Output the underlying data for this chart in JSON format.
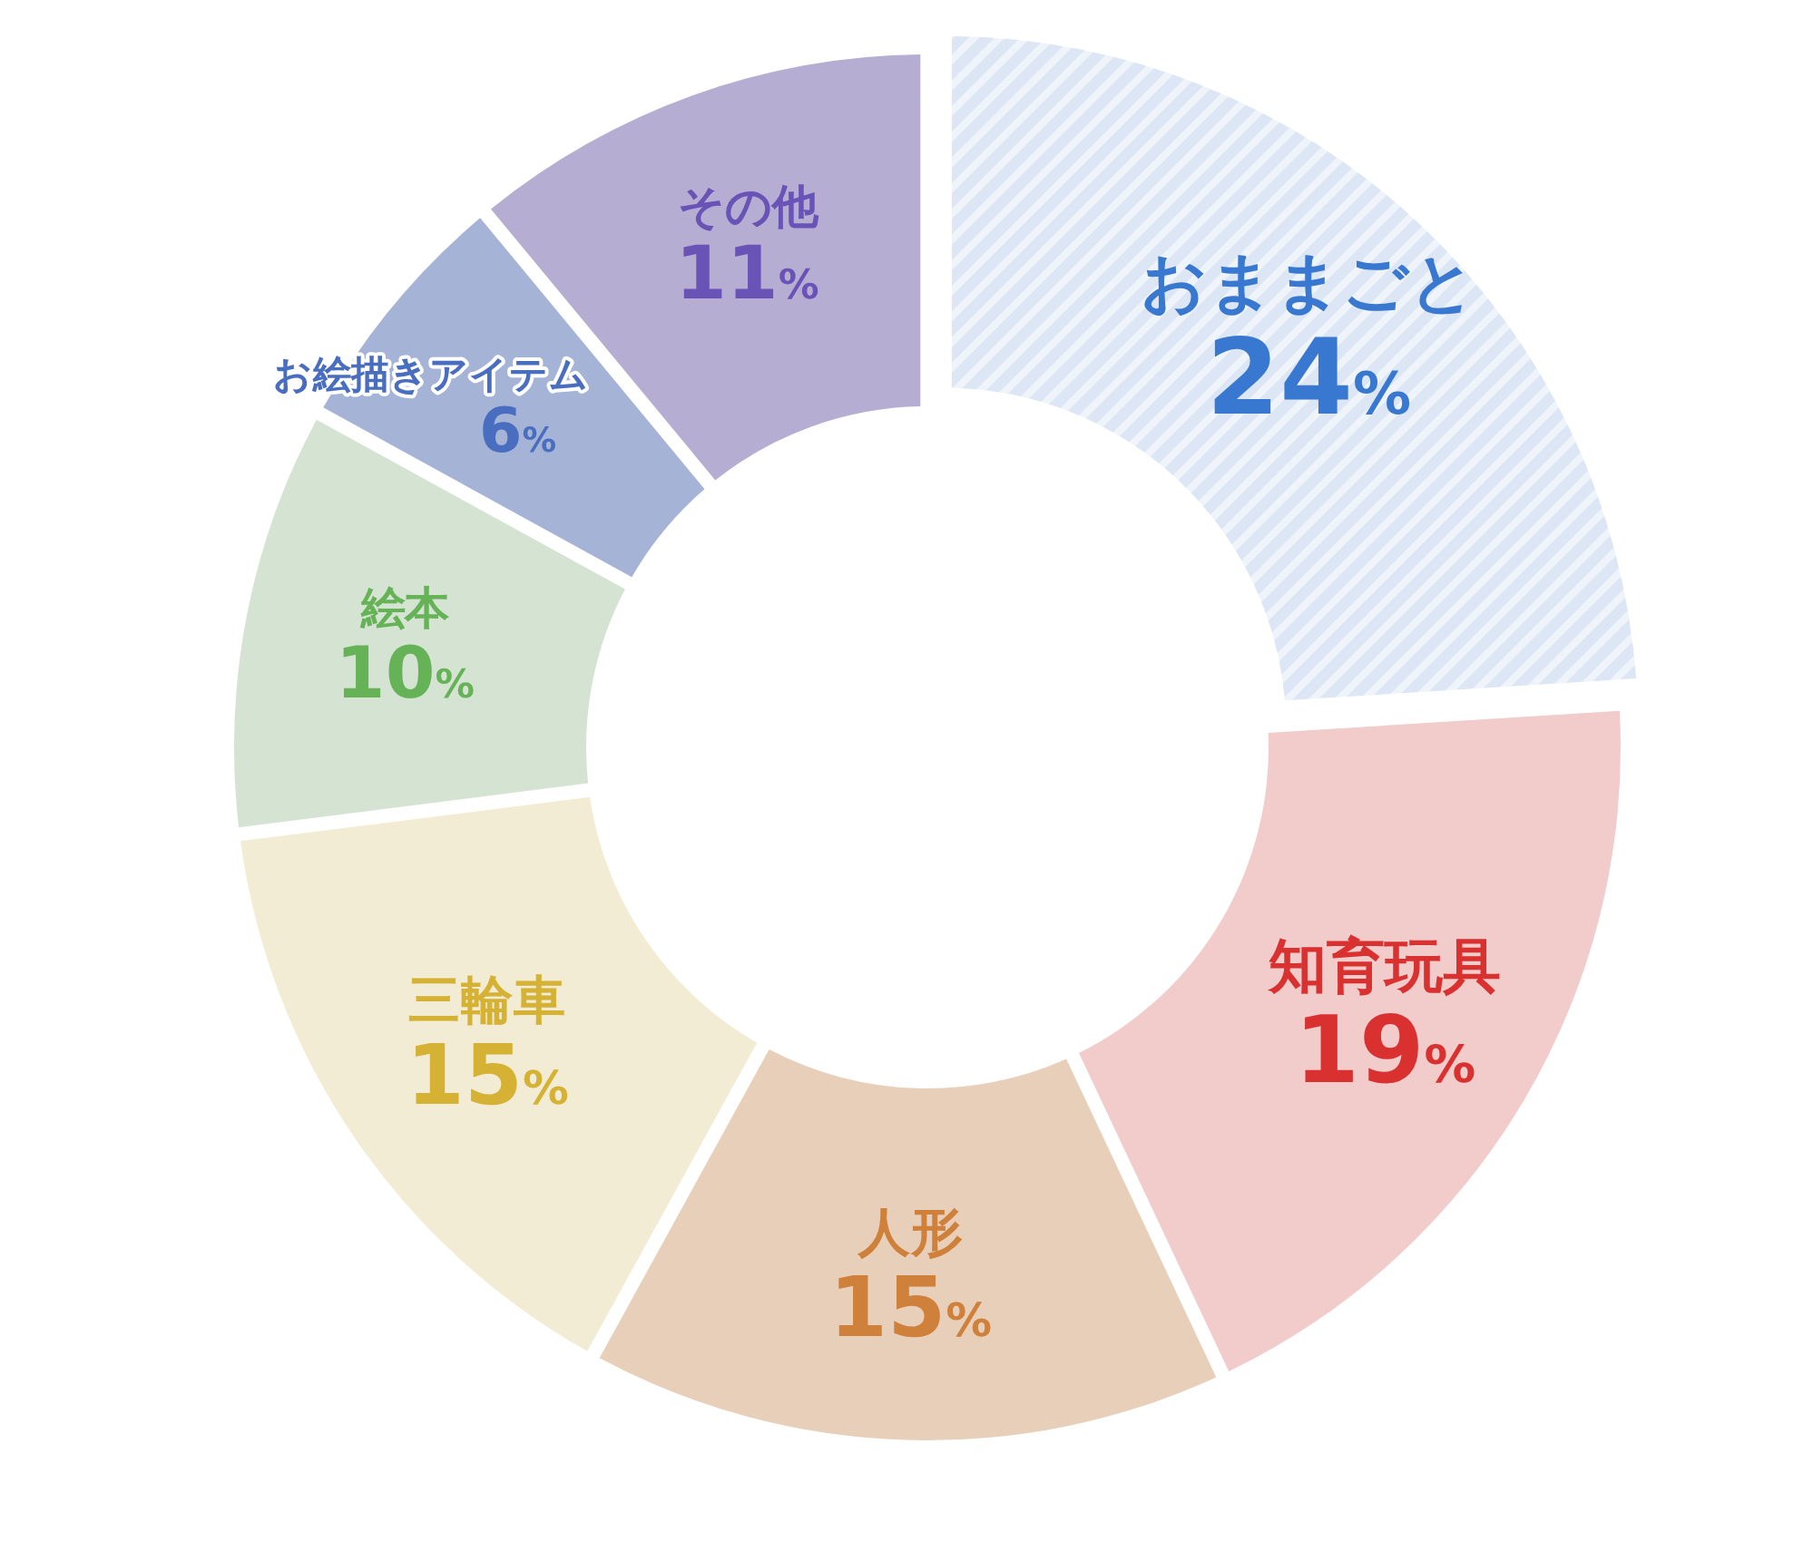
{
  "chart_data": {
    "type": "donut",
    "categories": [
      "おままごと",
      "知育玩具",
      "人形",
      "三輪車",
      "絵本",
      "お絵描きアイテム",
      "その他"
    ],
    "values": [
      24,
      19,
      15,
      15,
      10,
      6,
      11
    ],
    "colors": [
      "#dce6f4",
      "#f2cbcb",
      "#e8cfb9",
      "#f3ecd4",
      "#d5e4d2",
      "#a5b4d6",
      "#b6aed2"
    ],
    "value_labels": [
      "24%",
      "19%",
      "15%",
      "15%",
      "10%",
      "6%",
      "11%"
    ]
  }
}
